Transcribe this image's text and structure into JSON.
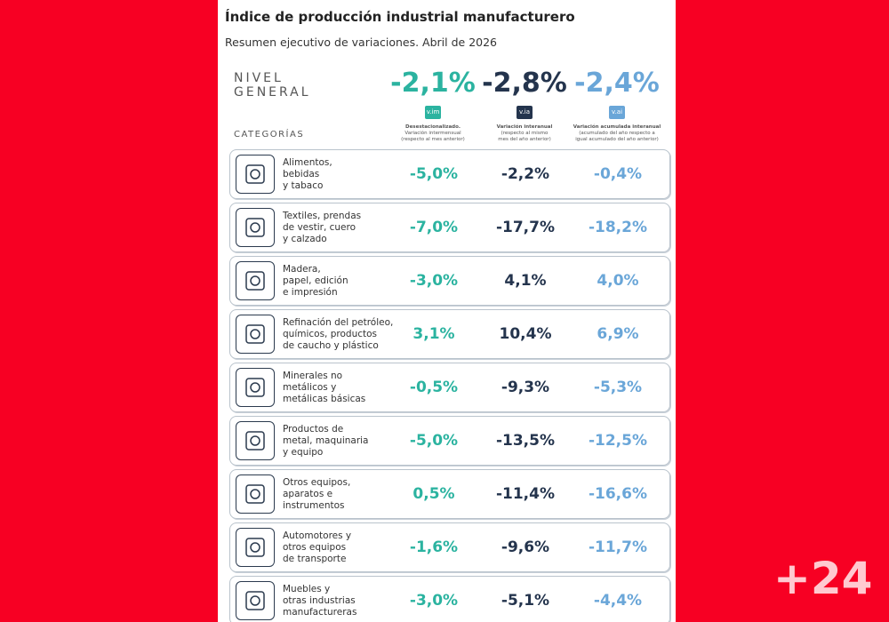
{
  "header": {
    "title": "Índice de producción industrial manufacturero",
    "subtitle": "Resumen ejecutivo de variaciones. Abril de 2026"
  },
  "general": {
    "label": [
      "NIVEL",
      "GENERAL"
    ],
    "values": [
      "-2,1%",
      "-2,8%",
      "-2,4%"
    ]
  },
  "columns": [
    {
      "badge": "v.im",
      "description": [
        "Desestacionalizado.",
        "Variación intermensual",
        "(respecto al mes anterior)"
      ]
    },
    {
      "badge": "v.ia",
      "description": [
        "Variación interanual",
        "(respecto al mismo",
        "mes del año anterior)"
      ]
    },
    {
      "badge": "v.ai",
      "description": [
        "Variación acumulada interanual",
        "(acumulado del año respecto a",
        "igual acumulado del año anterior)"
      ]
    }
  ],
  "categories_label": "CATEGORÍAS",
  "rows": [
    {
      "category": [
        "Alimentos,",
        "bebidas",
        "y tabaco"
      ],
      "values": [
        "-5,0%",
        "-2,2%",
        "-0,4%"
      ]
    },
    {
      "category": [
        "Textiles, prendas",
        "de vestir, cuero",
        "y calzado"
      ],
      "values": [
        "-7,0%",
        "-17,7%",
        "-18,2%"
      ]
    },
    {
      "category": [
        "Madera,",
        "papel, edición",
        "e impresión"
      ],
      "values": [
        "-3,0%",
        "4,1%",
        "4,0%"
      ]
    },
    {
      "category": [
        "Refinación del petróleo,",
        "químicos, productos",
        "de caucho y plástico"
      ],
      "values": [
        "3,1%",
        "10,4%",
        "6,9%"
      ]
    },
    {
      "category": [
        "Minerales no",
        "metálicos y",
        "metálicas básicas"
      ],
      "values": [
        "-0,5%",
        "-9,3%",
        "-5,3%"
      ]
    },
    {
      "category": [
        "Productos de",
        "metal, maquinaria",
        "y equipo"
      ],
      "values": [
        "-5,0%",
        "-13,5%",
        "-12,5%"
      ]
    },
    {
      "category": [
        "Otros equipos,",
        "aparatos e",
        "instrumentos"
      ],
      "values": [
        "0,5%",
        "-11,4%",
        "-16,6%"
      ]
    },
    {
      "category": [
        "Automotores y",
        "otros equipos",
        "de transporte"
      ],
      "values": [
        "-1,6%",
        "-9,6%",
        "-11,7%"
      ]
    },
    {
      "category": [
        "Muebles y",
        "otras industrias",
        "manufactureras"
      ],
      "values": [
        "-3,0%",
        "-5,1%",
        "-4,4%"
      ]
    }
  ],
  "logo": "+24"
}
